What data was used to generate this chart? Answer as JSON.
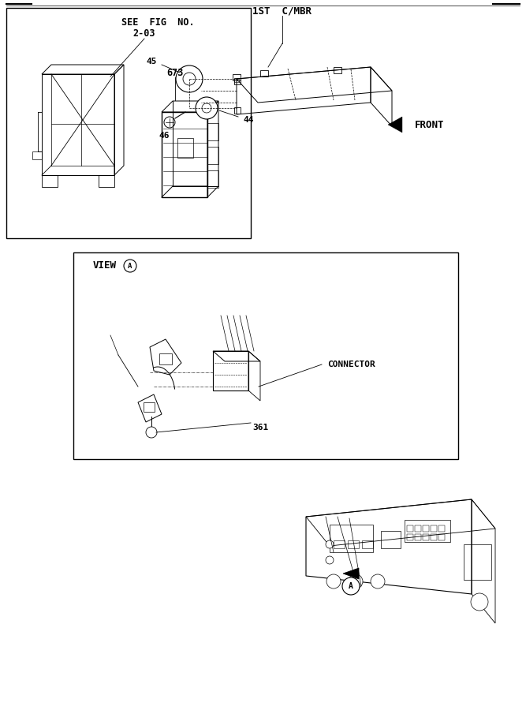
{
  "bg_color": "#ffffff",
  "line_color": "#000000",
  "fig_width": 6.67,
  "fig_height": 9.0,
  "dpi": 100,
  "annotations": {
    "see_fig_no": "SEE  FIG  NO.",
    "fig_num": "2-03",
    "part_673": "673",
    "view_a": "VIEW",
    "connector": "CONNECTOR",
    "part_361": "361",
    "part_45": "45",
    "part_44": "44",
    "part_46": "46",
    "label_1st_cmbr": "1ST  C/MBR",
    "front": "FRONT"
  }
}
